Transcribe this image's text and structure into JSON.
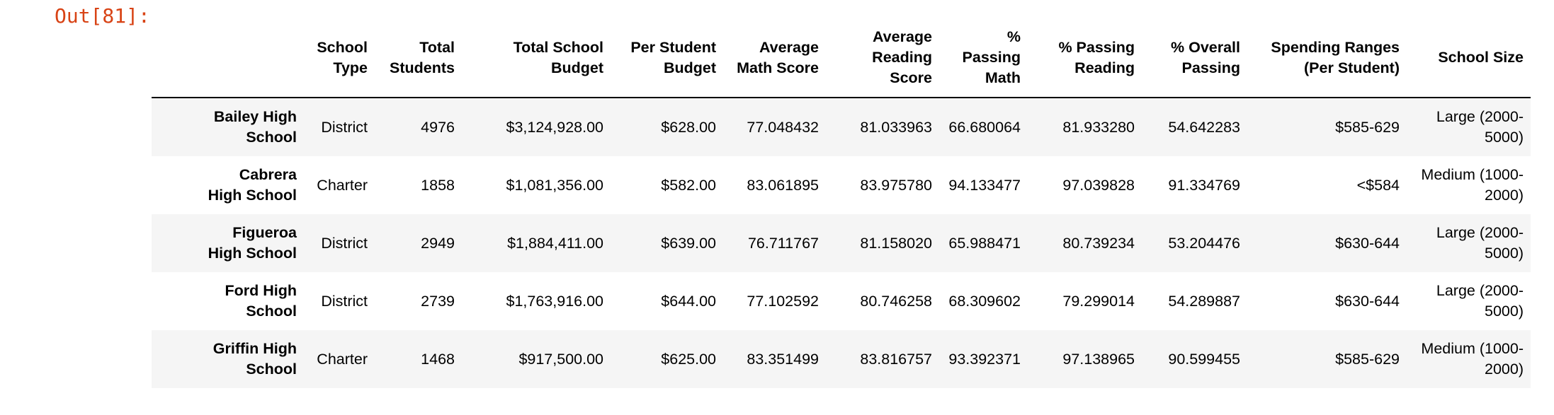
{
  "colors": {
    "prompt": "#D84315",
    "row_stripe": "#F5F5F5",
    "header_rule": "#000000"
  },
  "output": {
    "prompt_label": "Out[81]:"
  },
  "table": {
    "columns": [
      "School Type",
      "Total Students",
      "Total School Budget",
      "Per Student Budget",
      "Average Math Score",
      "Average Reading Score",
      "% Passing Math",
      "% Passing Reading",
      "% Overall Passing",
      "Spending Ranges (Per Student)",
      "School Size"
    ],
    "rows": [
      {
        "index": "Bailey High School",
        "cells": [
          "District",
          "4976",
          "$3,124,928.00",
          "$628.00",
          "77.048432",
          "81.033963",
          "66.680064",
          "81.933280",
          "54.642283",
          "$585-629",
          "Large (2000-5000)"
        ]
      },
      {
        "index": "Cabrera High School",
        "cells": [
          "Charter",
          "1858",
          "$1,081,356.00",
          "$582.00",
          "83.061895",
          "83.975780",
          "94.133477",
          "97.039828",
          "91.334769",
          "<$584",
          "Medium (1000-2000)"
        ]
      },
      {
        "index": "Figueroa High School",
        "cells": [
          "District",
          "2949",
          "$1,884,411.00",
          "$639.00",
          "76.711767",
          "81.158020",
          "65.988471",
          "80.739234",
          "53.204476",
          "$630-644",
          "Large (2000-5000)"
        ]
      },
      {
        "index": "Ford High School",
        "cells": [
          "District",
          "2739",
          "$1,763,916.00",
          "$644.00",
          "77.102592",
          "80.746258",
          "68.309602",
          "79.299014",
          "54.289887",
          "$630-644",
          "Large (2000-5000)"
        ]
      },
      {
        "index": "Griffin High School",
        "cells": [
          "Charter",
          "1468",
          "$917,500.00",
          "$625.00",
          "83.351499",
          "83.816757",
          "93.392371",
          "97.138965",
          "90.599455",
          "$585-629",
          "Medium (1000-2000)"
        ]
      }
    ]
  }
}
